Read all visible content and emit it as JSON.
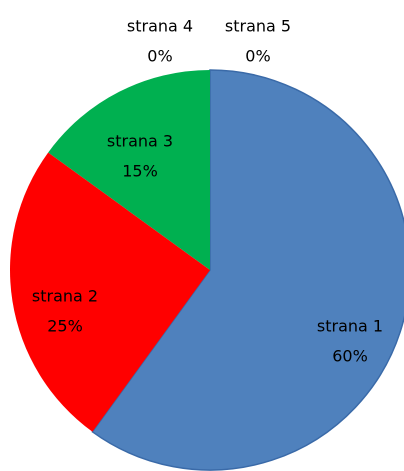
{
  "chart_data": {
    "type": "pie",
    "categories": [
      "strana 1",
      "strana 2",
      "strana 3",
      "strana 4",
      "strana 5"
    ],
    "values": [
      60,
      25,
      15,
      0,
      0
    ],
    "value_labels": [
      "60%",
      "25%",
      "15%",
      "0%",
      "0%"
    ],
    "colors": [
      "#4f81bd",
      "#ff0000",
      "#00b050",
      "#8064a2",
      "#4bacc6"
    ]
  }
}
